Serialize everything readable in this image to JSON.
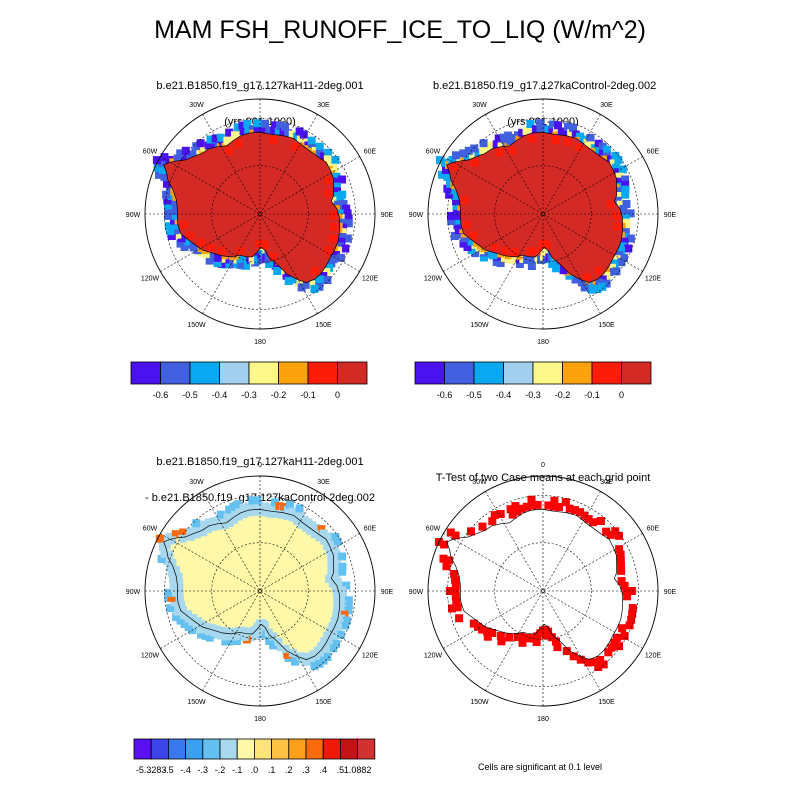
{
  "title": "MAM FSH_RUNOFF_ICE_TO_LIQ (W/m^2)",
  "panels": [
    {
      "id": "case1",
      "title_lines": [
        "b.e21.B1850.f19_g17.127kaH11-2deg.001",
        "(yrs 901-1000)"
      ]
    },
    {
      "id": "case2",
      "title_lines": [
        "b.e21.B1850.f19_g17.127kaControl-2deg.002",
        "(yrs 901-1000)"
      ]
    },
    {
      "id": "diff",
      "title_lines": [
        "b.e21.B1850.f19_g17.127kaH11-2deg.001",
        "- b.e21.B1850.f19_g17.127kaControl-2deg.002"
      ]
    },
    {
      "id": "ttest",
      "title_lines": [
        "T-Test of two Case means at each grid point"
      ]
    }
  ],
  "longitude_labels": [
    "0",
    "30E",
    "60E",
    "90E",
    "120E",
    "150E",
    "180",
    "150W",
    "120W",
    "90W",
    "60W",
    "30W"
  ],
  "colorbar_top": {
    "labels": [
      "-0.6",
      "-0.5",
      "-0.4",
      "-0.3",
      "-0.2",
      "-0.1",
      "0"
    ],
    "colors": [
      "#4a12f0",
      "#4060e0",
      "#0aa8f0",
      "#a0d0ee",
      "#fef88a",
      "#fca20c",
      "#fc1c08",
      "#d42a26"
    ]
  },
  "colorbar_bottom": {
    "labels": [
      "-5.3283",
      "-.5",
      "-.4",
      "-.3",
      "-.2",
      "-.1",
      ".0",
      ".1",
      ".2",
      ".3",
      ".4",
      ".5",
      "1.0882"
    ],
    "colors": [
      "#5a10f0",
      "#3a44e8",
      "#3a78ee",
      "#3aa0f2",
      "#64c0f0",
      "#a8d8ee",
      "#fef8a8",
      "#fee27a",
      "#fec244",
      "#fea01c",
      "#fc6a0c",
      "#f21806",
      "#c21414",
      "#d03232"
    ]
  },
  "footnote": "Cells are significant at 0.1 level",
  "map_colors": {
    "land": "#d42a26",
    "diff_land": "#fef8a8",
    "diff_coast": "#a8d8ee",
    "signif": "#fe0000"
  }
}
